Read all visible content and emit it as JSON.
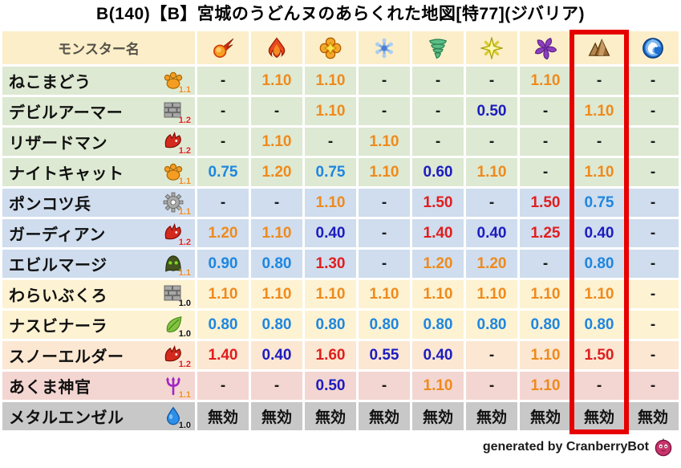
{
  "title": "B(140)【B】宮城のうどんヌのあらくれた地図[特77](ジバリア)",
  "chart_data": {
    "type": "table",
    "title": "B(140)【B】宮城のうどんヌのあらくれた地図[特77](ジバリア)",
    "name_header": "モンスター名",
    "element_columns": [
      {
        "icon": "fireball-icon",
        "highlighted": false
      },
      {
        "icon": "flame-icon",
        "highlighted": false
      },
      {
        "icon": "explosion-icon",
        "highlighted": false
      },
      {
        "icon": "snowflake-icon",
        "highlighted": false
      },
      {
        "icon": "tornado-icon",
        "highlighted": false
      },
      {
        "icon": "spark-icon",
        "highlighted": false
      },
      {
        "icon": "pinwheel-icon",
        "highlighted": false
      },
      {
        "icon": "rock-icon",
        "highlighted": true
      },
      {
        "icon": "wave-icon",
        "highlighted": false
      }
    ],
    "highlighted_column_index": 7,
    "rows": [
      {
        "name": "ねこまどう",
        "family_icon": "paw-icon",
        "multiplier": "1.1",
        "row_color": "green",
        "values": [
          "-",
          "1.10",
          "1.10",
          "-",
          "-",
          "-",
          "1.10",
          "-",
          "-"
        ]
      },
      {
        "name": "デビルアーマー",
        "family_icon": "brick-icon",
        "multiplier": "1.2",
        "row_color": "green",
        "values": [
          "-",
          "-",
          "1.10",
          "-",
          "-",
          "0.50",
          "-",
          "1.10",
          "-"
        ]
      },
      {
        "name": "リザードマン",
        "family_icon": "dragon-icon",
        "multiplier": "1.2",
        "row_color": "green",
        "values": [
          "-",
          "1.10",
          "-",
          "1.10",
          "-",
          "-",
          "-",
          "-",
          "-"
        ]
      },
      {
        "name": "ナイトキャット",
        "family_icon": "paw-icon",
        "multiplier": "1.1",
        "row_color": "green",
        "values": [
          "0.75",
          "1.20",
          "0.75",
          "1.10",
          "0.60",
          "1.10",
          "-",
          "1.10",
          "-"
        ]
      },
      {
        "name": "ポンコツ兵",
        "family_icon": "gear-icon",
        "multiplier": "1.1",
        "row_color": "blue",
        "values": [
          "-",
          "-",
          "1.10",
          "-",
          "1.50",
          "-",
          "1.50",
          "0.75",
          "-"
        ]
      },
      {
        "name": "ガーディアン",
        "family_icon": "dragon-icon",
        "multiplier": "1.2",
        "row_color": "blue",
        "values": [
          "1.20",
          "1.10",
          "0.40",
          "-",
          "1.40",
          "0.40",
          "1.25",
          "0.40",
          "-"
        ]
      },
      {
        "name": "エビルマージ",
        "family_icon": "hood-icon",
        "multiplier": "1.1",
        "row_color": "blue",
        "values": [
          "0.90",
          "0.80",
          "1.30",
          "-",
          "1.20",
          "1.20",
          "-",
          "0.80",
          "-"
        ]
      },
      {
        "name": "わらいぶくろ",
        "family_icon": "brick-icon",
        "multiplier": "1.0",
        "row_color": "cream",
        "values": [
          "1.10",
          "1.10",
          "1.10",
          "1.10",
          "1.10",
          "1.10",
          "1.10",
          "1.10",
          "-"
        ]
      },
      {
        "name": "ナスビナーラ",
        "family_icon": "leaf-icon",
        "multiplier": "1.0",
        "row_color": "cream",
        "values": [
          "0.80",
          "0.80",
          "0.80",
          "0.80",
          "0.80",
          "0.80",
          "0.80",
          "0.80",
          "-"
        ]
      },
      {
        "name": "スノーエルダー",
        "family_icon": "dragon-icon",
        "multiplier": "1.2",
        "row_color": "peach",
        "values": [
          "1.40",
          "0.40",
          "1.60",
          "0.55",
          "0.40",
          "-",
          "1.10",
          "1.50",
          "-"
        ]
      },
      {
        "name": "あくま神官",
        "family_icon": "trident-icon",
        "multiplier": "1.1",
        "row_color": "pink",
        "values": [
          "-",
          "-",
          "0.50",
          "-",
          "1.10",
          "-",
          "1.10",
          "-",
          "-"
        ]
      },
      {
        "name": "メタルエンゼル",
        "family_icon": "slime-icon",
        "multiplier": "1.0",
        "row_color": "gray",
        "values": [
          "無効",
          "無効",
          "無効",
          "無効",
          "無効",
          "無効",
          "無効",
          "無効",
          "無効"
        ]
      }
    ],
    "null_label": "無効",
    "dash_label": "-"
  },
  "value_colors": {
    "boost_strong": "#e01e1e",
    "boost": "#ef8a1d",
    "resist": "#1e86e0",
    "resist_strong": "#1c1cc0",
    "neutral": "#1a1a1a"
  },
  "row_colors": {
    "green": "#dde9d2",
    "blue": "#cfddee",
    "cream": "#fdf2d2",
    "peach": "#fbe7d2",
    "pink": "#f3d6d1",
    "gray": "#c8c8c8",
    "header": "#fbeec8"
  },
  "highlight_box_color": "#e60000",
  "footer": {
    "credit": "generated by CranberryBot",
    "icon": "cranberry-icon"
  }
}
